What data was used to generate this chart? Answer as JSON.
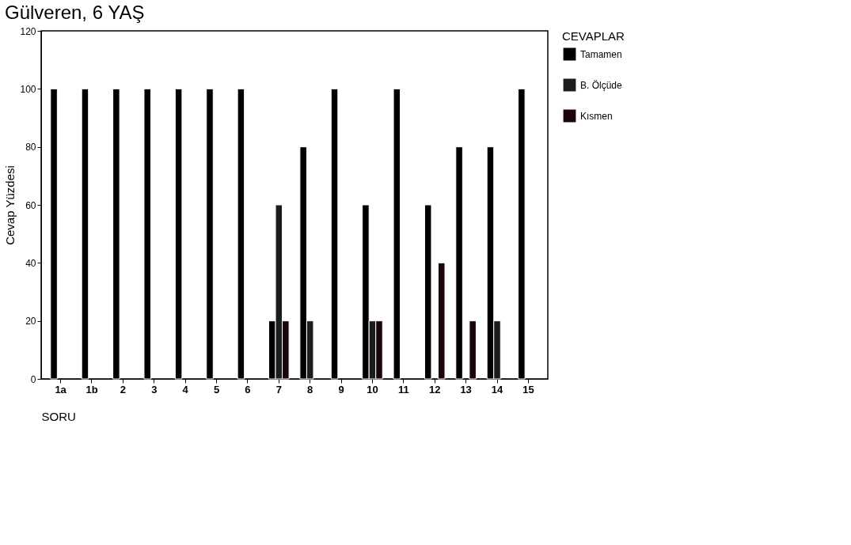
{
  "chart_data": {
    "type": "bar",
    "title": "Gülveren, 6 YAŞ",
    "xlabel": "SORU",
    "ylabel": "Cevap Yüzdesi",
    "legend_title": "CEVAPLAR",
    "categories": [
      "1a",
      "1b",
      "2",
      "3",
      "4",
      "5",
      "6",
      "7",
      "8",
      "9",
      "10",
      "11",
      "12",
      "13",
      "14",
      "15"
    ],
    "series": [
      {
        "name": "Tamamen",
        "color": "#000000",
        "values": [
          100,
          100,
          100,
          100,
          100,
          100,
          100,
          20,
          80,
          100,
          60,
          100,
          60,
          80,
          80,
          100
        ]
      },
      {
        "name": "B. Ölçüde",
        "color": "#1c1c1c",
        "values": [
          null,
          null,
          null,
          null,
          null,
          null,
          null,
          60,
          20,
          null,
          20,
          null,
          null,
          null,
          20,
          null
        ]
      },
      {
        "name": "Kısmen",
        "color": "#1a0508",
        "values": [
          null,
          null,
          null,
          null,
          null,
          null,
          null,
          20,
          null,
          null,
          20,
          null,
          40,
          20,
          null,
          null
        ]
      }
    ],
    "ylim": [
      0,
      120
    ],
    "yticks": [
      0,
      20,
      40,
      60,
      80,
      100,
      120
    ],
    "grid": false,
    "legend": "right"
  }
}
